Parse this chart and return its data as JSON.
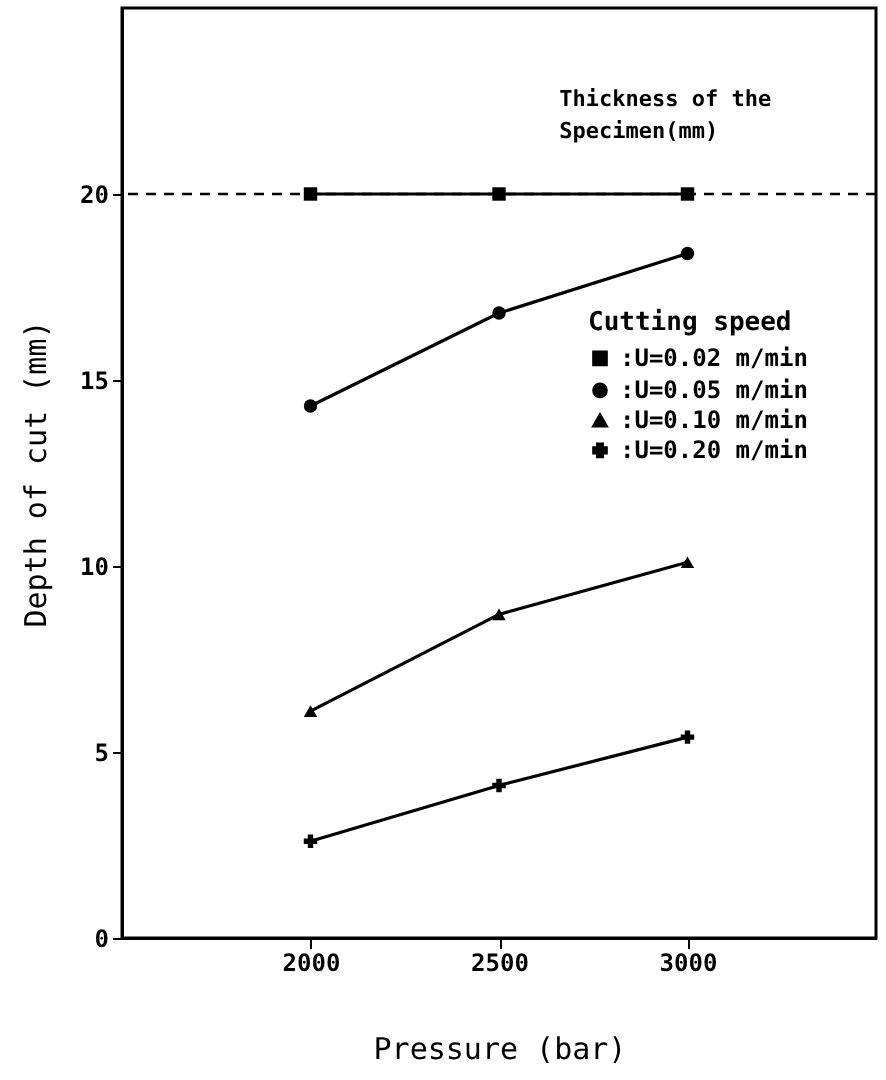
{
  "chart_data": {
    "type": "line",
    "xlabel": "Pressure (bar)",
    "ylabel": "Depth of cut (mm)",
    "legend_title": "Cutting speed",
    "x": [
      2000,
      2500,
      3000
    ],
    "series": [
      {
        "name": ":U=0.02 m/min",
        "color": "#000000",
        "marker": "square",
        "values": [
          20,
          20,
          20
        ]
      },
      {
        "name": ":U=0.05 m/min",
        "color": "#000000",
        "marker": "circle",
        "values": [
          14.3,
          16.8,
          18.4
        ]
      },
      {
        "name": ":U=0.10 m/min",
        "color": "#000000",
        "marker": "triangle",
        "values": [
          6.1,
          8.7,
          10.1
        ]
      },
      {
        "name": ":U=0.20 m/min",
        "color": "#000000",
        "marker": "cross",
        "values": [
          2.6,
          4.1,
          5.4
        ]
      }
    ],
    "xlim": [
      1500,
      3500
    ],
    "xticks": [
      2000,
      2500,
      3000
    ],
    "ylim": [
      0,
      25
    ],
    "yticks": [
      0,
      5,
      10,
      15,
      20
    ],
    "ref_lines": [
      {
        "axis": "y",
        "value": 20,
        "line_style": "dashed"
      }
    ],
    "annotations": [
      "Thickness of the\nSpecimen(mm)"
    ],
    "grid": false,
    "legend": "right",
    "line_style": "solid"
  }
}
